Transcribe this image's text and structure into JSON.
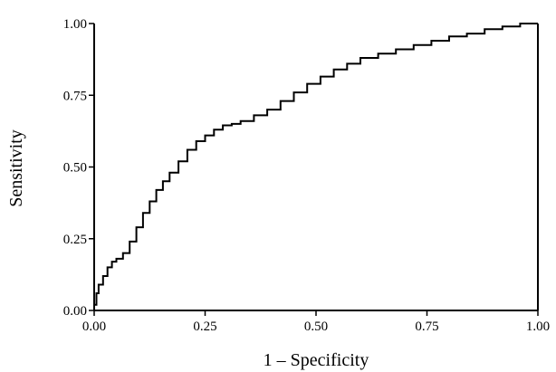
{
  "chart_data": {
    "type": "line",
    "title": "",
    "xlabel": "1 – Specificity",
    "ylabel": "Sensitivity",
    "xlim": [
      0,
      1
    ],
    "ylim": [
      0,
      1
    ],
    "x_ticks": [
      0,
      0.25,
      0.5,
      0.75,
      1
    ],
    "y_ticks": [
      0,
      0.25,
      0.5,
      0.75,
      1
    ],
    "x_tick_labels": [
      "0.00",
      "0.25",
      "0.50",
      "0.75",
      "1.00"
    ],
    "y_tick_labels": [
      "0.00",
      "0.25",
      "0.50",
      "0.75",
      "1.00"
    ],
    "grid": false,
    "legend": "none",
    "line_color": "#000000",
    "series": [
      {
        "x": [
          0.0,
          0.0,
          0.005,
          0.01,
          0.02,
          0.03,
          0.04,
          0.05,
          0.065,
          0.08,
          0.095,
          0.11,
          0.125,
          0.14,
          0.155,
          0.17,
          0.19,
          0.21,
          0.23,
          0.25,
          0.27,
          0.29,
          0.31,
          0.33,
          0.36,
          0.39,
          0.42,
          0.45,
          0.48,
          0.51,
          0.54,
          0.57,
          0.6,
          0.64,
          0.68,
          0.72,
          0.76,
          0.8,
          0.84,
          0.88,
          0.92,
          0.96,
          1.0
        ],
        "y": [
          0.0,
          0.02,
          0.06,
          0.09,
          0.12,
          0.15,
          0.17,
          0.18,
          0.2,
          0.24,
          0.29,
          0.34,
          0.38,
          0.42,
          0.45,
          0.48,
          0.52,
          0.56,
          0.59,
          0.61,
          0.63,
          0.645,
          0.65,
          0.66,
          0.68,
          0.7,
          0.73,
          0.76,
          0.79,
          0.815,
          0.84,
          0.86,
          0.88,
          0.895,
          0.91,
          0.925,
          0.94,
          0.955,
          0.965,
          0.98,
          0.99,
          1.0,
          1.0
        ]
      }
    ]
  }
}
